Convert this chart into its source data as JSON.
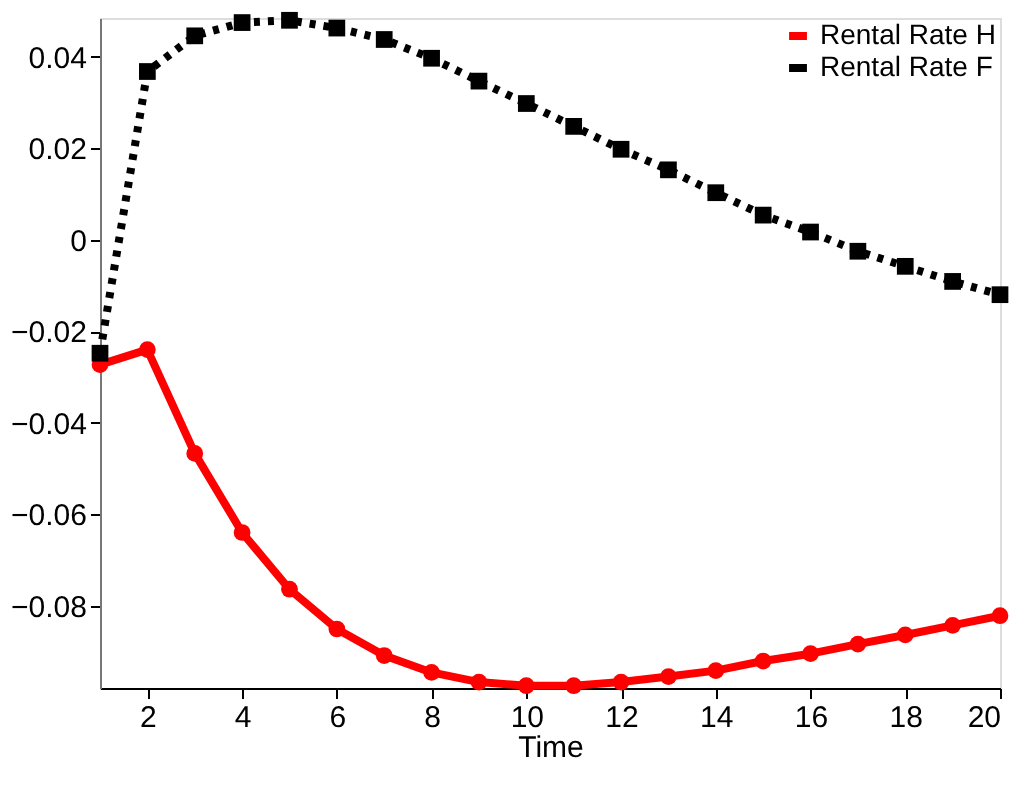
{
  "chart_data": {
    "type": "line",
    "xlabel": "Time",
    "x": [
      1,
      2,
      3,
      4,
      5,
      6,
      7,
      8,
      9,
      10,
      11,
      12,
      13,
      14,
      15,
      16,
      17,
      18,
      19,
      20
    ],
    "series": [
      {
        "name": "Rental Rate H",
        "color": "#ff0000",
        "marker": "circle",
        "line_style": "solid",
        "values": [
          -0.0273,
          -0.024,
          -0.0467,
          -0.064,
          -0.0764,
          -0.0851,
          -0.0909,
          -0.0946,
          -0.0967,
          -0.0975,
          -0.0975,
          -0.0967,
          -0.0955,
          -0.0942,
          -0.0921,
          -0.0905,
          -0.0884,
          -0.0864,
          -0.0843,
          -0.0822
        ]
      },
      {
        "name": "Rental Rate F",
        "color": "#000000",
        "marker": "square",
        "line_style": "dotted",
        "values": [
          -0.0248,
          0.0368,
          0.0446,
          0.0475,
          0.048,
          0.0463,
          0.0438,
          0.0397,
          0.0347,
          0.0298,
          0.0248,
          0.0198,
          0.0153,
          0.0103,
          0.0054,
          0.0017,
          -0.0025,
          -0.0058,
          -0.0091,
          -0.012
        ]
      }
    ],
    "xlim": [
      1,
      20
    ],
    "xticks": [
      2,
      4,
      6,
      8,
      10,
      12,
      14,
      16,
      18,
      20
    ],
    "ylim": [
      -0.098,
      0.0485
    ],
    "yticks": [
      {
        "value": -0.08,
        "label": "−0.08"
      },
      {
        "value": -0.06,
        "label": "−0.06"
      },
      {
        "value": -0.04,
        "label": "−0.04"
      },
      {
        "value": -0.02,
        "label": "−0.02"
      },
      0,
      0.02,
      0.04
    ],
    "grid": false,
    "legend": "top right"
  }
}
